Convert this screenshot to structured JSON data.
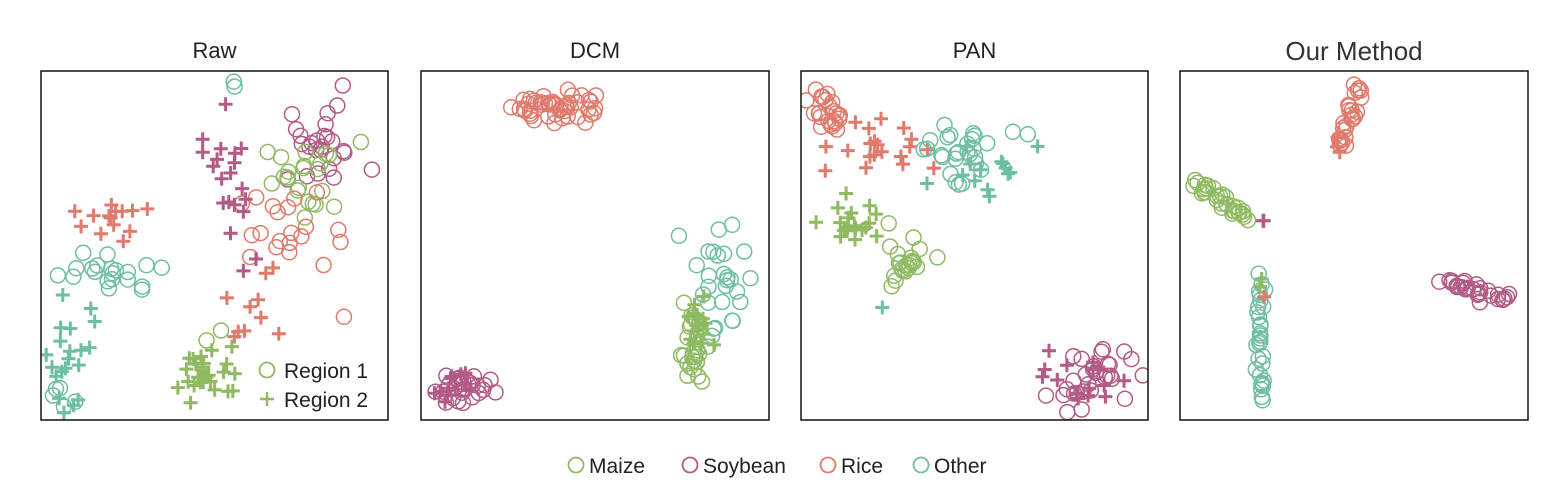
{
  "colors": {
    "Maize": "#8fba62",
    "Soybean": "#b35a86",
    "Rice": "#e07a6c",
    "Other": "#6dbf9f"
  },
  "chart_data": [
    {
      "type": "scatter",
      "title": "Raw",
      "axes_visible": false,
      "xlim": [
        0,
        100
      ],
      "ylim": [
        0,
        100
      ],
      "inset_legend": {
        "placement": "bottom-right",
        "entries": [
          {
            "marker": "circle",
            "label": "Region 1"
          },
          {
            "marker": "plus",
            "label": "Region 2"
          }
        ]
      },
      "clusters": [
        {
          "class": "Other",
          "marker": "circle",
          "cx": 56,
          "cy": 96,
          "sx": 0.6,
          "sy": 0.6,
          "n": 2
        },
        {
          "class": "Soybean",
          "marker": "circle",
          "cx": 80,
          "cy": 78,
          "sx": 7,
          "sy": 6,
          "n": 26
        },
        {
          "class": "Maize",
          "marker": "circle",
          "cx": 78,
          "cy": 68,
          "sx": 7,
          "sy": 6,
          "n": 22
        },
        {
          "class": "Rice",
          "marker": "circle",
          "cx": 70,
          "cy": 55,
          "sx": 7,
          "sy": 5,
          "n": 20
        },
        {
          "class": "Soybean",
          "marker": "plus",
          "cx": 54,
          "cy": 65,
          "sx": 4,
          "sy": 12,
          "n": 20
        },
        {
          "class": "Rice",
          "marker": "plus",
          "cx": 20,
          "cy": 57,
          "sx": 4,
          "sy": 3,
          "n": 14
        },
        {
          "class": "Other",
          "marker": "circle",
          "cx": 20,
          "cy": 42,
          "sx": 8,
          "sy": 3,
          "n": 20
        },
        {
          "class": "Other",
          "marker": "plus",
          "cx": 10,
          "cy": 20,
          "sx": 4,
          "sy": 10,
          "n": 20
        },
        {
          "class": "Other",
          "marker": "circle",
          "cx": 7,
          "cy": 8,
          "sx": 2,
          "sy": 2,
          "n": 5
        },
        {
          "class": "Maize",
          "marker": "plus",
          "cx": 48,
          "cy": 13,
          "sx": 5,
          "sy": 4,
          "n": 28
        },
        {
          "class": "Rice",
          "marker": "plus",
          "cx": 60,
          "cy": 35,
          "sx": 8,
          "sy": 8,
          "n": 10
        },
        {
          "class": "Rice",
          "marker": "circle",
          "cx": 88,
          "cy": 29,
          "sx": 0.5,
          "sy": 0.5,
          "n": 1
        },
        {
          "class": "Maize",
          "marker": "circle",
          "cx": 49,
          "cy": 26,
          "sx": 3,
          "sy": 3,
          "n": 2
        }
      ]
    },
    {
      "type": "scatter",
      "title": "DCM",
      "axes_visible": false,
      "xlim": [
        0,
        100
      ],
      "ylim": [
        0,
        100
      ],
      "clusters": [
        {
          "class": "Rice",
          "marker": "circle",
          "cx": 38,
          "cy": 90,
          "sx": 6,
          "sy": 2.5,
          "n": 48
        },
        {
          "class": "Soybean",
          "marker": "circle",
          "cx": 12,
          "cy": 9,
          "sx": 4,
          "sy": 2.5,
          "n": 28
        },
        {
          "class": "Soybean",
          "marker": "plus",
          "cx": 10,
          "cy": 10,
          "sx": 3,
          "sy": 2,
          "n": 10
        },
        {
          "class": "Other",
          "marker": "circle",
          "cx": 85,
          "cy": 38,
          "sx": 4,
          "sy": 9,
          "n": 30
        },
        {
          "class": "Maize",
          "marker": "circle",
          "cx": 78,
          "cy": 20,
          "sx": 2,
          "sy": 5,
          "n": 24
        },
        {
          "class": "Maize",
          "marker": "plus",
          "cx": 79,
          "cy": 26,
          "sx": 2,
          "sy": 4,
          "n": 16
        }
      ]
    },
    {
      "type": "scatter",
      "title": "PAN",
      "axes_visible": false,
      "xlim": [
        0,
        100
      ],
      "ylim": [
        0,
        100
      ],
      "clusters": [
        {
          "class": "Rice",
          "marker": "circle",
          "cx": 8,
          "cy": 88,
          "sx": 3,
          "sy": 4,
          "n": 24
        },
        {
          "class": "Rice",
          "marker": "plus",
          "cx": 22,
          "cy": 78,
          "sx": 6,
          "sy": 5,
          "n": 20
        },
        {
          "class": "Other",
          "marker": "circle",
          "cx": 45,
          "cy": 78,
          "sx": 7,
          "sy": 4,
          "n": 28
        },
        {
          "class": "Other",
          "marker": "plus",
          "cx": 50,
          "cy": 70,
          "sx": 10,
          "sy": 5,
          "n": 14
        },
        {
          "class": "Maize",
          "marker": "plus",
          "cx": 15,
          "cy": 56,
          "sx": 5,
          "sy": 3,
          "n": 20
        },
        {
          "class": "Maize",
          "marker": "circle",
          "cx": 29,
          "cy": 45,
          "sx": 4,
          "sy": 5,
          "n": 22
        },
        {
          "class": "Other",
          "marker": "plus",
          "cx": 24,
          "cy": 33,
          "sx": 0.5,
          "sy": 0.5,
          "n": 1
        },
        {
          "class": "Soybean",
          "marker": "circle",
          "cx": 84,
          "cy": 12,
          "sx": 6,
          "sy": 4,
          "n": 30
        },
        {
          "class": "Soybean",
          "marker": "plus",
          "cx": 80,
          "cy": 11,
          "sx": 5,
          "sy": 4,
          "n": 16
        }
      ]
    },
    {
      "type": "scatter",
      "title": "Our Method",
      "axes_visible": false,
      "xlim": [
        0,
        100
      ],
      "ylim": [
        0,
        100
      ],
      "clusters": [
        {
          "class": "Rice",
          "marker": "circle",
          "line": [
            [
              46,
              78
            ],
            [
              52,
              96
            ]
          ],
          "jitter": 1,
          "n": 26
        },
        {
          "class": "Rice",
          "marker": "plus",
          "line": [
            [
              45,
              77
            ],
            [
              46,
              80
            ]
          ],
          "jitter": 0.5,
          "n": 3
        },
        {
          "class": "Maize",
          "marker": "circle",
          "line": [
            [
              4,
              68
            ],
            [
              20,
              58
            ]
          ],
          "jitter": 1,
          "n": 30
        },
        {
          "class": "Soybean",
          "marker": "plus",
          "cx": 24,
          "cy": 57,
          "sx": 0.5,
          "sy": 0.5,
          "n": 2
        },
        {
          "class": "Soybean",
          "marker": "circle",
          "line": [
            [
              76,
              40
            ],
            [
              94,
              34
            ]
          ],
          "jitter": 1,
          "n": 30
        },
        {
          "class": "Other",
          "marker": "circle",
          "line": [
            [
              23,
              5
            ],
            [
              23,
              40
            ]
          ],
          "jitter": 0.7,
          "n": 30
        },
        {
          "class": "Maize",
          "marker": "plus",
          "cx": 23.5,
          "cy": 40,
          "sx": 0.5,
          "sy": 1,
          "n": 2
        },
        {
          "class": "Rice",
          "marker": "plus",
          "cx": 24,
          "cy": 36,
          "sx": 0.5,
          "sy": 0.5,
          "n": 1
        }
      ]
    }
  ],
  "legend": {
    "placement": "bottom-center",
    "entries": [
      {
        "class": "Maize",
        "label": "Maize"
      },
      {
        "class": "Soybean",
        "label": "Soybean"
      },
      {
        "class": "Rice",
        "label": "Rice"
      },
      {
        "class": "Other",
        "label": "Other"
      }
    ]
  }
}
